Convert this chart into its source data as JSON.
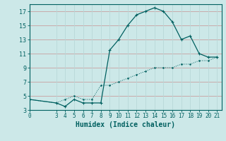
{
  "xlabel": "Humidex (Indice chaleur)",
  "background_color": "#cce8e8",
  "grid_major_color": "#c8a0a0",
  "grid_minor_color": "#b8d8d8",
  "line_color": "#006060",
  "xlim": [
    0,
    21.5
  ],
  "ylim": [
    3,
    18
  ],
  "xticks": [
    0,
    3,
    4,
    5,
    6,
    7,
    8,
    9,
    10,
    11,
    12,
    13,
    14,
    15,
    16,
    17,
    18,
    19,
    20,
    21
  ],
  "yticks": [
    3,
    5,
    7,
    9,
    11,
    13,
    15,
    17
  ],
  "series1_x": [
    0,
    3,
    4,
    5,
    6,
    7,
    8,
    9,
    10,
    11,
    12,
    13,
    14,
    15,
    16,
    17,
    18,
    19,
    20,
    21
  ],
  "series1_y": [
    4.5,
    4.0,
    3.5,
    4.5,
    4.0,
    4.0,
    4.0,
    11.5,
    13.0,
    15.0,
    16.5,
    17.0,
    17.5,
    17.0,
    15.5,
    13.0,
    13.5,
    11.0,
    10.5,
    10.5
  ],
  "series2_x": [
    0,
    3,
    4,
    5,
    6,
    7,
    8,
    9,
    10,
    11,
    12,
    13,
    14,
    15,
    16,
    17,
    18,
    19,
    20,
    21
  ],
  "series2_y": [
    4.5,
    4.0,
    4.5,
    5.0,
    4.5,
    4.5,
    6.5,
    6.5,
    7.0,
    7.5,
    8.0,
    8.5,
    9.0,
    9.0,
    9.0,
    9.5,
    9.5,
    10.0,
    10.0,
    10.5
  ]
}
